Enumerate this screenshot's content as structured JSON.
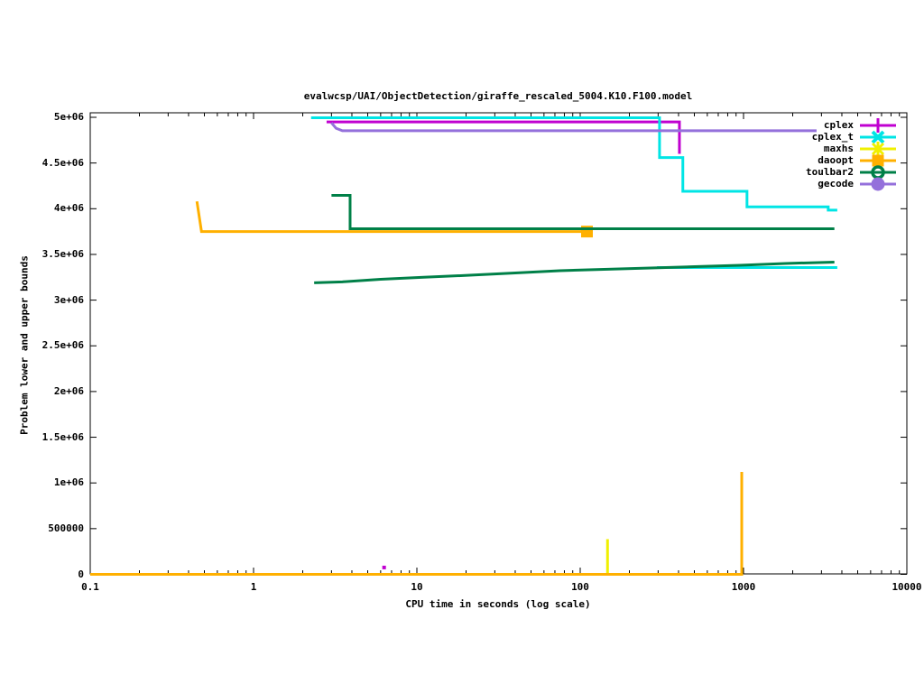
{
  "chart_data": {
    "type": "line",
    "title": "evalwcsp/UAI/ObjectDetection/giraffe_rescaled_5004.K10.F100.model",
    "xlabel": "CPU time in seconds (log scale)",
    "ylabel": "Problem lower and upper bounds",
    "x_scale": "log",
    "xlim": [
      0.1,
      10000
    ],
    "ylim": [
      0,
      5000000
    ],
    "grid": false,
    "legend_position": "top-right-inside",
    "x_ticks": [
      {
        "v": 0.1,
        "label": "0.1"
      },
      {
        "v": 1,
        "label": "1"
      },
      {
        "v": 10,
        "label": "10"
      },
      {
        "v": 100,
        "label": "100"
      },
      {
        "v": 1000,
        "label": "1000"
      },
      {
        "v": 10000,
        "label": "10000"
      }
    ],
    "y_ticks": [
      {
        "v": 0,
        "label": "0"
      },
      {
        "v": 500000,
        "label": "500000"
      },
      {
        "v": 1000000,
        "label": "1e+06"
      },
      {
        "v": 1500000,
        "label": "1.5e+06"
      },
      {
        "v": 2000000,
        "label": "2e+06"
      },
      {
        "v": 2500000,
        "label": "2.5e+06"
      },
      {
        "v": 3000000,
        "label": "3e+06"
      },
      {
        "v": 3500000,
        "label": "3.5e+06"
      },
      {
        "v": 4000000,
        "label": "4e+06"
      },
      {
        "v": 4500000,
        "label": "4.5e+06"
      },
      {
        "v": 5000000,
        "label": "5e+06"
      }
    ],
    "legend": [
      {
        "label": "cplex",
        "color": "#c000d0",
        "marker": "plus"
      },
      {
        "label": "cplex_t",
        "color": "#00e5e5",
        "marker": "cross"
      },
      {
        "label": "maxhs",
        "color": "#f0f000",
        "marker": "star"
      },
      {
        "label": "daoopt",
        "color": "#ffb000",
        "marker": "square"
      },
      {
        "label": "toulbar2",
        "color": "#008048",
        "marker": "circle-open"
      },
      {
        "label": "gecode",
        "color": "#9470db",
        "marker": "circle-filled"
      }
    ],
    "series": [
      {
        "name": "maxhs-lower-bound",
        "solver": "maxhs",
        "color": "#f0f000",
        "points": [
          [
            0.1,
            0
          ],
          [
            147,
            0
          ],
          [
            147,
            385000
          ]
        ]
      },
      {
        "name": "daoopt-lower-bound",
        "solver": "daoopt",
        "color": "#ffb000",
        "points": [
          [
            0.1,
            0
          ],
          [
            975,
            0
          ],
          [
            975,
            1120000
          ]
        ]
      },
      {
        "name": "daoopt-upper-bound",
        "solver": "daoopt",
        "color": "#ffb000",
        "end_marker": "square",
        "points": [
          [
            0.45,
            4080000
          ],
          [
            0.48,
            3750000
          ],
          [
            110,
            3750000
          ]
        ]
      },
      {
        "name": "cplex-upper-bound",
        "solver": "cplex",
        "color": "#c000d0",
        "points": [
          [
            2.8,
            4950000
          ],
          [
            405,
            4950000
          ],
          [
            405,
            4600000
          ]
        ]
      },
      {
        "name": "cplex-lower-bound",
        "solver": "cplex",
        "color": "#c000d0",
        "point_marker": "dot",
        "points": [
          [
            6.3,
            75000
          ]
        ]
      },
      {
        "name": "cplex_t-upper-bound",
        "solver": "cplex_t",
        "color": "#00e5e5",
        "points": [
          [
            2.25,
            4995000
          ],
          [
            306,
            4995000
          ],
          [
            306,
            4560000
          ],
          [
            425,
            4560000
          ],
          [
            425,
            4190000
          ],
          [
            1050,
            4190000
          ],
          [
            1050,
            4020000
          ],
          [
            3300,
            4020000
          ],
          [
            3300,
            3985000
          ],
          [
            3750,
            3985000
          ]
        ]
      },
      {
        "name": "cplex_t-lower-bound",
        "solver": "cplex_t",
        "color": "#00e5e5",
        "points": [
          [
            295,
            3356000
          ],
          [
            3750,
            3356000
          ]
        ]
      },
      {
        "name": "toulbar2-upper-bound",
        "solver": "toulbar2",
        "color": "#008048",
        "points": [
          [
            3.0,
            4146000
          ],
          [
            3.9,
            4146000
          ],
          [
            3.9,
            3781000
          ],
          [
            3600,
            3781000
          ]
        ]
      },
      {
        "name": "toulbar2-lower-bound",
        "solver": "toulbar2",
        "color": "#008048",
        "points": [
          [
            2.35,
            3190000
          ],
          [
            3.5,
            3200000
          ],
          [
            6,
            3228000
          ],
          [
            11,
            3250000
          ],
          [
            21,
            3272000
          ],
          [
            40,
            3297000
          ],
          [
            75,
            3322000
          ],
          [
            140,
            3337000
          ],
          [
            270,
            3352000
          ],
          [
            500,
            3366000
          ],
          [
            950,
            3381000
          ],
          [
            1800,
            3401000
          ],
          [
            3600,
            3416000
          ]
        ]
      },
      {
        "name": "gecode-upper-bound",
        "solver": "gecode",
        "color": "#9470db",
        "points": [
          [
            3.0,
            4940000
          ],
          [
            3.2,
            4880000
          ],
          [
            3.5,
            4853000
          ],
          [
            2800,
            4853000
          ]
        ]
      }
    ]
  }
}
